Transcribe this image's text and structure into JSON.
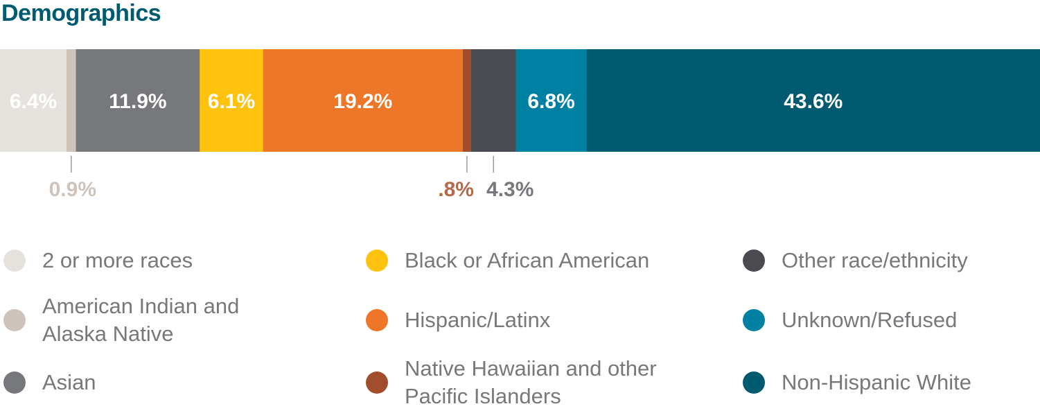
{
  "title": "Demographics",
  "chart_data": {
    "type": "bar",
    "orientation": "horizontal-stacked-100",
    "title": "Demographics",
    "segments": [
      {
        "name": "2 or more races",
        "value": 6.4,
        "label": "6.4%",
        "color": "#e6e3df",
        "label_color": "#ffffff",
        "label_position": "inside"
      },
      {
        "name": "American Indian and Alaska Native",
        "value": 0.9,
        "label": "0.9%",
        "color": "#cfc4bc",
        "label_color": "#cfc4bc",
        "label_position": "below"
      },
      {
        "name": "Asian",
        "value": 11.9,
        "label": "11.9%",
        "color": "#77787b",
        "label_color": "#ffffff",
        "label_position": "inside"
      },
      {
        "name": "Black or African American",
        "value": 6.1,
        "label": "6.1%",
        "color": "#ffc20e",
        "label_color": "#ffffff",
        "label_position": "inside"
      },
      {
        "name": "Hispanic/Latinx",
        "value": 19.2,
        "label": "19.2%",
        "color": "#ee7628",
        "label_color": "#ffffff",
        "label_position": "inside"
      },
      {
        "name": "Native Hawaiian and other Pacific Islanders",
        "value": 0.8,
        "label": ".8%",
        "color": "#a04e2e",
        "label_color": "#b4694b",
        "label_position": "below"
      },
      {
        "name": "Other race/ethnicity",
        "value": 4.3,
        "label": "4.3%",
        "color": "#4a4b51",
        "label_color": "#77787b",
        "label_position": "below"
      },
      {
        "name": "Unknown/Refused",
        "value": 6.8,
        "label": "6.8%",
        "color": "#0081a3",
        "label_color": "#ffffff",
        "label_position": "inside"
      },
      {
        "name": "Non-Hispanic White",
        "value": 43.6,
        "label": "43.6%",
        "color": "#005a70",
        "label_color": "#ffffff",
        "label_position": "inside"
      }
    ],
    "legend_position": "bottom",
    "grid": false
  },
  "legend": [
    {
      "label": "2 or more races",
      "color": "#e6e3df"
    },
    {
      "label": "American Indian and Alaska Native",
      "color": "#cfc4bc"
    },
    {
      "label": "Asian",
      "color": "#77787b"
    },
    {
      "label": "Black or African American",
      "color": "#ffc20e"
    },
    {
      "label": "Hispanic/Latinx",
      "color": "#ee7628"
    },
    {
      "label": "Native Hawaiian and other Pacific Islanders",
      "color": "#a04e2e"
    },
    {
      "label": "Other race/ethnicity",
      "color": "#4a4b51"
    },
    {
      "label": "Unknown/Refused",
      "color": "#0081a3"
    },
    {
      "label": "Non-Hispanic White",
      "color": "#005a70"
    }
  ]
}
